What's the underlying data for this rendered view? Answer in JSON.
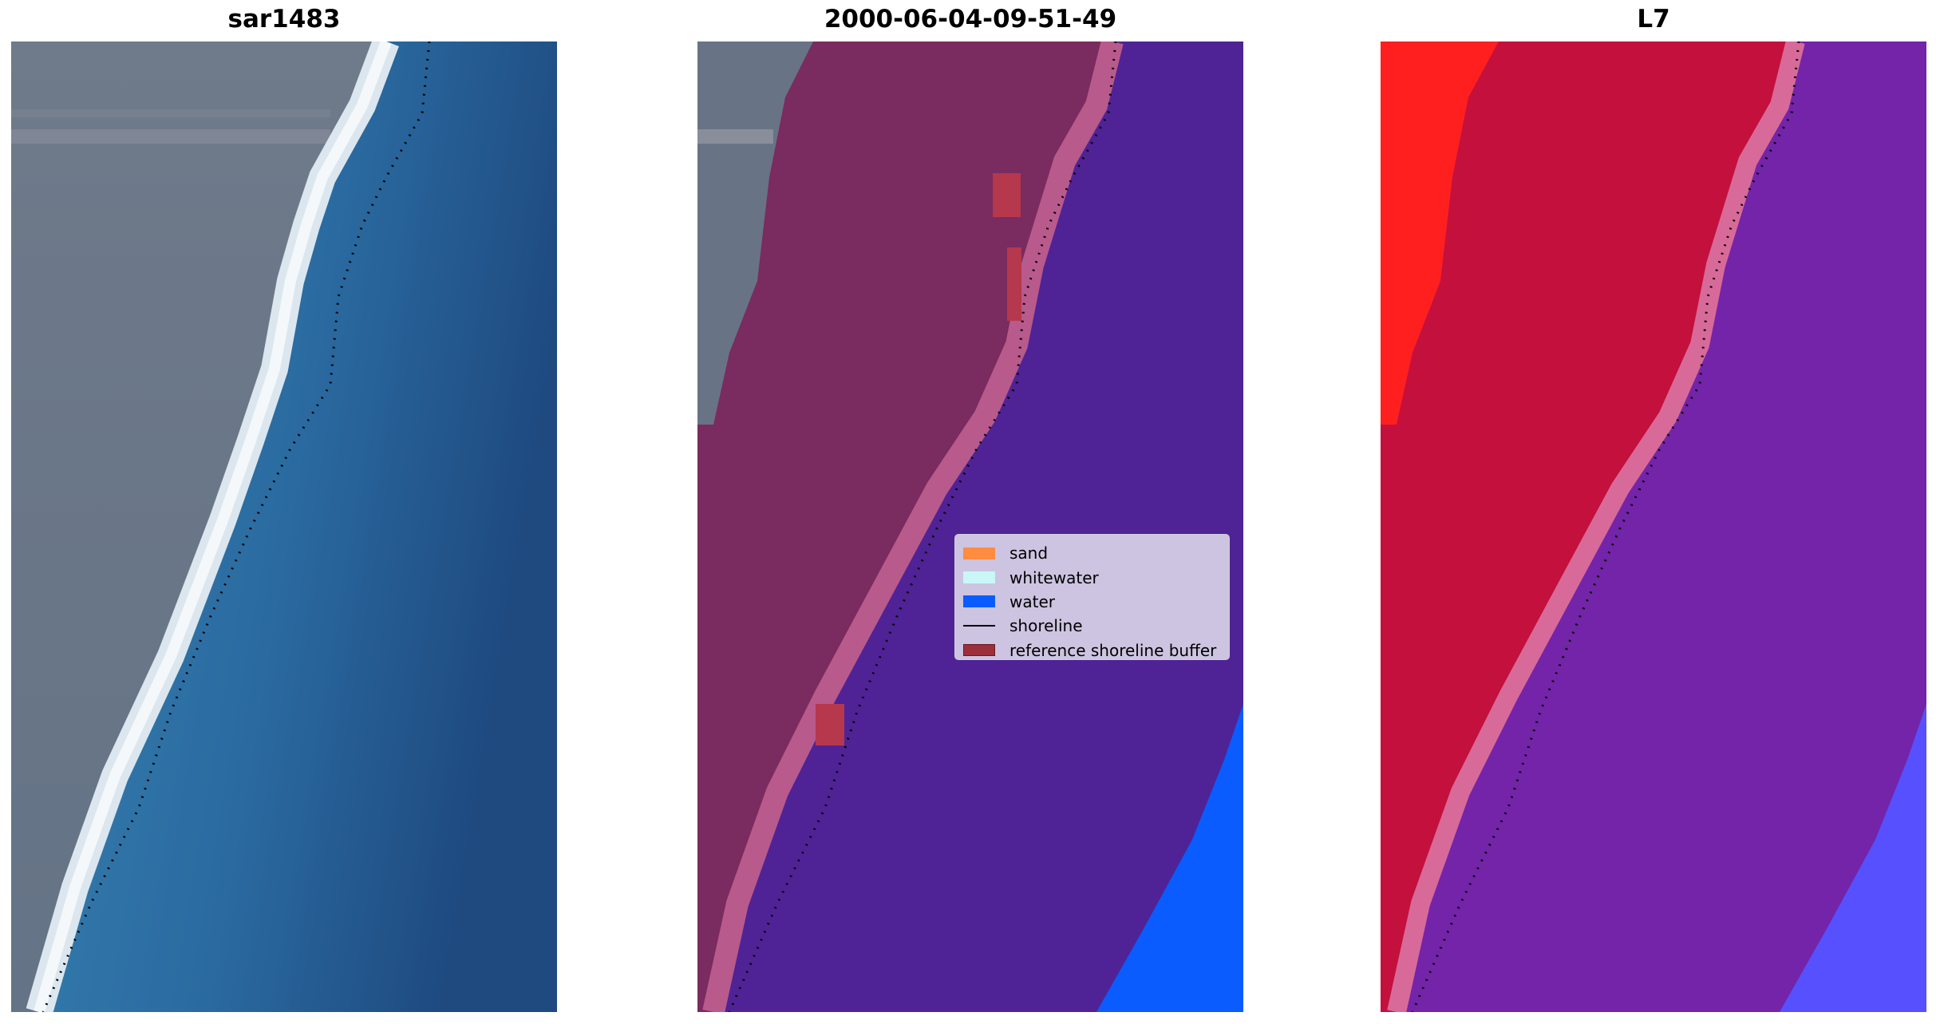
{
  "panels": [
    {
      "title": "sar1483"
    },
    {
      "title": "2000-06-04-09-51-49"
    },
    {
      "title": "L7"
    }
  ],
  "legend": {
    "items": [
      {
        "label": "sand",
        "kind": "patch",
        "color": "#ff8c40"
      },
      {
        "label": "whitewater",
        "kind": "patch",
        "color": "#c9f7f7"
      },
      {
        "label": "water",
        "kind": "patch",
        "color": "#0a5cff"
      },
      {
        "label": "shoreline",
        "kind": "line",
        "color": "#000000"
      },
      {
        "label": "reference shoreline buffer",
        "kind": "patch",
        "color": "#9b2f3c"
      }
    ]
  },
  "colors": {
    "land_gray": "#687386",
    "beach_white": "#e6edf2",
    "sea_blue": "#2f76a8",
    "deep_blue": "#1f4f86",
    "classified_land": "#7a2b60",
    "classified_sand_edge": "#b85a8c",
    "classified_water": "#4f2396",
    "ocean_blue": "#0a5cff",
    "l7_red": "#c4103c",
    "l7_bright_red": "#ff1f1f",
    "l7_purple": "#7424a8",
    "l7_light_blue": "#5650ff"
  }
}
